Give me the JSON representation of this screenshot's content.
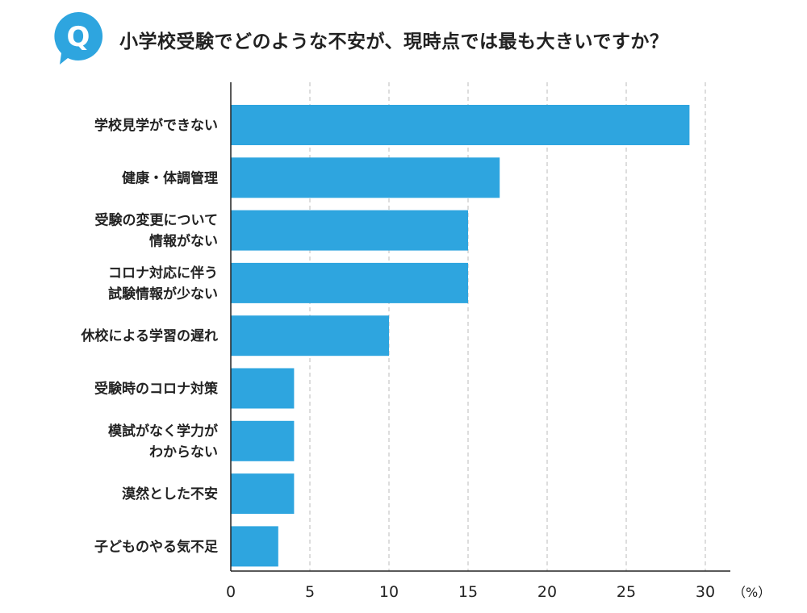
{
  "title": "小学校受験でどのような不安が、現時点では最も大きいですか？",
  "badge": "Q",
  "colors": {
    "accent": "#2ea5df",
    "bar": "#2ea5df",
    "grid": "#bbbbbb",
    "axis": "#222222"
  },
  "chart_data": {
    "type": "bar",
    "orientation": "horizontal",
    "categories": [
      [
        "学校見学ができない"
      ],
      [
        "健康・体調管理"
      ],
      [
        "受験の変更について",
        "情報がない"
      ],
      [
        "コロナ対応に伴う",
        "試験情報が少ない"
      ],
      [
        "休校による学習の遅れ"
      ],
      [
        "受験時のコロナ対策"
      ],
      [
        "模試がなく学力が",
        "わからない"
      ],
      [
        "漠然とした不安"
      ],
      [
        "子どものやる気不足"
      ]
    ],
    "values": [
      29,
      17,
      15,
      15,
      10,
      4,
      4,
      4,
      3
    ],
    "xticks": [
      "0",
      "5",
      "10",
      "15",
      "20",
      "25",
      "30"
    ],
    "xlim": [
      0,
      30
    ],
    "unit": "（%）",
    "grid": "vertical-dashed"
  }
}
